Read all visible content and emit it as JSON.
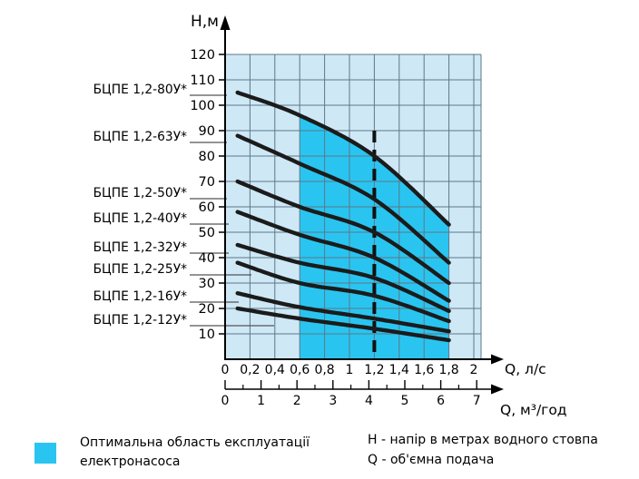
{
  "chart_data": {
    "type": "line",
    "title": "",
    "y_axis": {
      "label": "Н,м",
      "min": 0,
      "max": 120,
      "ticks": [
        120,
        110,
        100,
        90,
        80,
        70,
        60,
        50,
        40,
        30,
        20,
        10
      ]
    },
    "x_axis_primary": {
      "label": "Q, л/с",
      "min": 0,
      "max": 2,
      "ticks": [
        [
          0,
          "0"
        ],
        [
          0.2,
          "0,2"
        ],
        [
          0.4,
          "0,4"
        ],
        [
          0.6,
          "0,6"
        ],
        [
          0.8,
          "0,8"
        ],
        [
          1,
          "1"
        ],
        [
          1.2,
          "1,2"
        ],
        [
          1.4,
          "1,4"
        ],
        [
          1.6,
          "1,6"
        ],
        [
          1.8,
          "1,8"
        ],
        [
          2,
          "2"
        ]
      ]
    },
    "x_axis_secondary": {
      "label": "Q, м³/год",
      "min": 0,
      "max": 7,
      "major_ticks": [
        [
          0,
          "0"
        ],
        [
          1,
          "1"
        ],
        [
          2,
          "2"
        ],
        [
          3,
          "3"
        ],
        [
          4,
          "4"
        ],
        [
          5,
          "5"
        ],
        [
          6,
          "6"
        ],
        [
          7,
          "7"
        ]
      ],
      "minor_ticks": [
        0.5,
        1.5,
        2.5,
        3.5,
        4.5,
        5.5,
        6.5
      ]
    },
    "grid": true,
    "series": [
      {
        "name": "БЦПЕ 1,2-80У*",
        "points": [
          [
            0.1,
            105
          ],
          [
            0.6,
            96
          ],
          [
            1.2,
            80
          ],
          [
            1.8,
            53
          ]
        ]
      },
      {
        "name": "БЦПЕ 1,2-63У*",
        "points": [
          [
            0.1,
            88
          ],
          [
            0.6,
            77
          ],
          [
            1.2,
            63
          ],
          [
            1.8,
            38
          ]
        ]
      },
      {
        "name": "БЦПЕ 1,2-50У*",
        "points": [
          [
            0.1,
            70
          ],
          [
            0.6,
            60
          ],
          [
            1.2,
            50
          ],
          [
            1.8,
            30
          ]
        ]
      },
      {
        "name": "БЦПЕ 1,2-40У*",
        "points": [
          [
            0.1,
            58
          ],
          [
            0.6,
            49
          ],
          [
            1.2,
            40
          ],
          [
            1.8,
            23
          ]
        ]
      },
      {
        "name": "БЦПЕ 1,2-32У*",
        "points": [
          [
            0.1,
            45
          ],
          [
            0.6,
            38
          ],
          [
            1.2,
            32
          ],
          [
            1.8,
            19
          ]
        ]
      },
      {
        "name": "БЦПЕ 1,2-25У*",
        "points": [
          [
            0.1,
            38
          ],
          [
            0.6,
            30
          ],
          [
            1.2,
            25
          ],
          [
            1.8,
            15
          ]
        ]
      },
      {
        "name": "БЦПЕ 1,2-16У*",
        "points": [
          [
            0.1,
            26
          ],
          [
            0.6,
            20.5
          ],
          [
            1.2,
            16
          ],
          [
            1.8,
            11
          ]
        ]
      },
      {
        "name": "БЦПЕ 1,2-12У*",
        "points": [
          [
            0.1,
            20
          ],
          [
            0.6,
            16
          ],
          [
            1.2,
            12
          ],
          [
            1.8,
            7.5
          ]
        ]
      }
    ],
    "optimal_region": {
      "q_min": 0.6,
      "q_max": 1.8,
      "bounded_above_by": "БЦПЕ 1,2-80У*"
    },
    "nominal_flow_line": {
      "q": 1.2,
      "h_from": 0,
      "h_to": 90,
      "style": "dashed"
    },
    "colors": {
      "plot_bg": "#cee8f6",
      "optimal_region": "#29c5f0",
      "grid_line": "#5f7788",
      "curve": "#1b1b1b",
      "axis": "#000000",
      "leader_line": "#555555"
    }
  },
  "legend": {
    "swatch_color": "#29c5f0",
    "line1": "Оптимальна область експлуатації",
    "line2": "електронасоса"
  },
  "notes": {
    "line1": "Н - напір в метрах водного стовпа",
    "line2": "Q - об'ємна подача"
  }
}
